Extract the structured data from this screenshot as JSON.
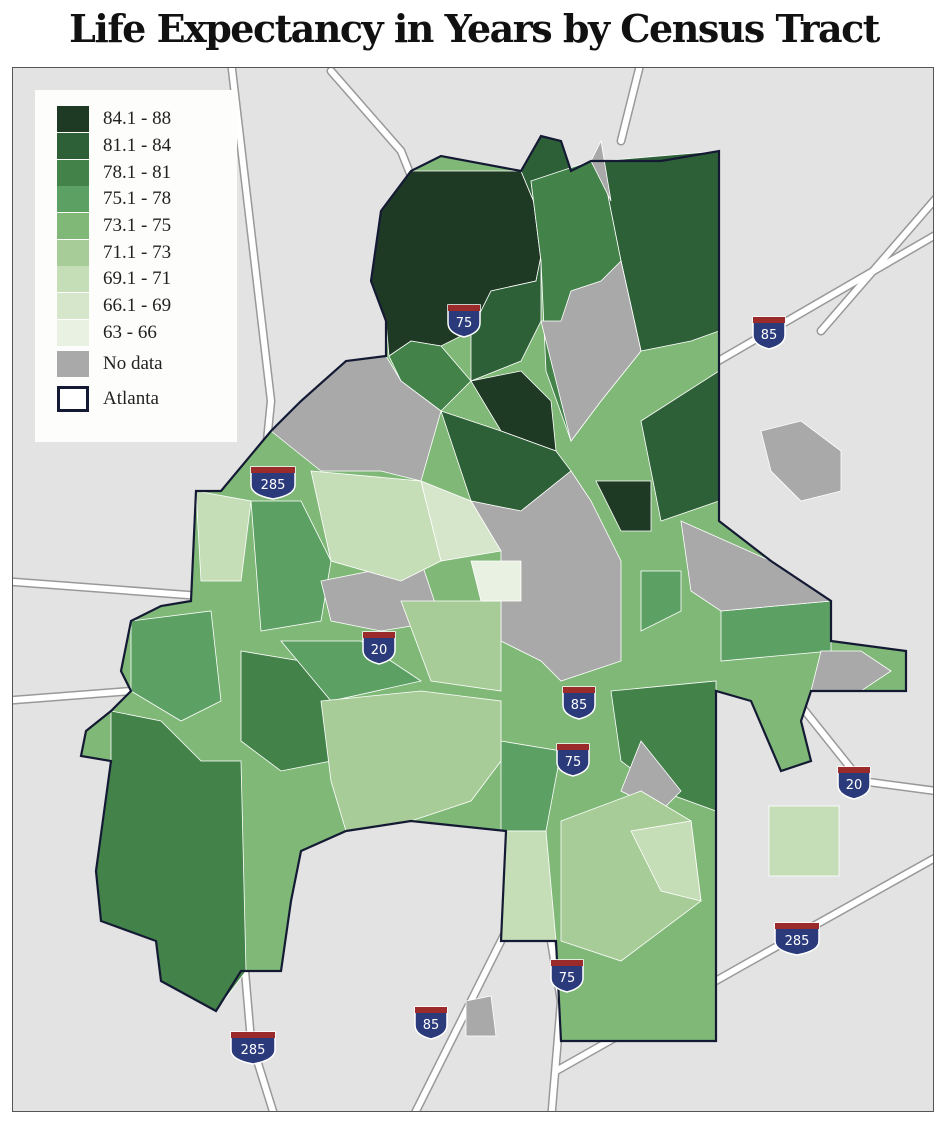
{
  "title": "Life Expectancy in Years by Census Tract",
  "legend": {
    "items": [
      {
        "label": "84.1 - 88",
        "color": "#1f3a24"
      },
      {
        "label": "81.1 - 84",
        "color": "#2e6038"
      },
      {
        "label": "78.1 - 81",
        "color": "#43834a"
      },
      {
        "label": "75.1 - 78",
        "color": "#5ca063"
      },
      {
        "label": "73.1 - 75",
        "color": "#80b878"
      },
      {
        "label": "71.1 - 73",
        "color": "#a8cc98"
      },
      {
        "label": "69.1 - 71",
        "color": "#c6deb7"
      },
      {
        "label": "66.1 - 69",
        "color": "#d6e6ca"
      },
      {
        "label": "63 - 66",
        "color": "#e9f2e2"
      }
    ],
    "no_data": {
      "label": "No data",
      "color": "#a9a9a9"
    },
    "boundary": {
      "label": "Atlanta",
      "color": "#141a33"
    }
  },
  "shields": [
    {
      "label": "75"
    },
    {
      "label": "85"
    },
    {
      "label": "285"
    },
    {
      "label": "20"
    },
    {
      "label": "85"
    },
    {
      "label": "75"
    },
    {
      "label": "20"
    },
    {
      "label": "285"
    },
    {
      "label": "75"
    },
    {
      "label": "85"
    },
    {
      "label": "285"
    }
  ]
}
